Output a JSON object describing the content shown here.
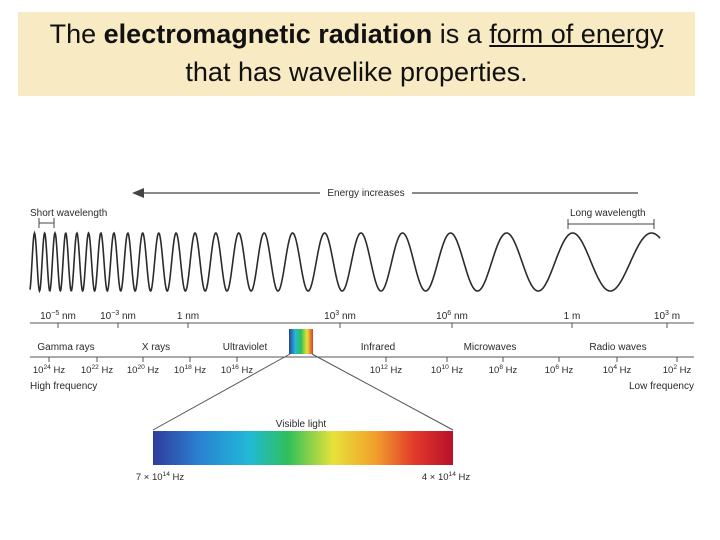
{
  "title": {
    "line1": {
      "part1": "The ",
      "bold": "electromagnetic radiation",
      "part2": " is a ",
      "underlined": "form of energy"
    },
    "line2": "that has wavelike properties."
  },
  "spectrum": {
    "energy_label": "Energy increases",
    "short_wavelength": "Short wavelength",
    "long_wavelength": "Long wavelength",
    "high_frequency": "High frequency",
    "low_frequency": "Low frequency",
    "wavelength_ticks": [
      {
        "base": "10",
        "exp": "−5",
        "unit": " nm"
      },
      {
        "base": "10",
        "exp": "−3",
        "unit": " nm"
      },
      {
        "base": "1 nm",
        "exp": "",
        "unit": ""
      },
      {
        "base": "10",
        "exp": "3",
        "unit": " nm"
      },
      {
        "base": "10",
        "exp": "6",
        "unit": " nm"
      },
      {
        "base": "1 m",
        "exp": "",
        "unit": ""
      },
      {
        "base": "10",
        "exp": "3",
        "unit": " m"
      }
    ],
    "regions": [
      "Gamma rays",
      "X rays",
      "Ultraviolet",
      "Infrared",
      "Microwaves",
      "Radio waves"
    ],
    "frequency_ticks": [
      {
        "base": "10",
        "exp": "24",
        "unit": " Hz"
      },
      {
        "base": "10",
        "exp": "22",
        "unit": " Hz"
      },
      {
        "base": "10",
        "exp": "20",
        "unit": " Hz"
      },
      {
        "base": "10",
        "exp": "18",
        "unit": " Hz"
      },
      {
        "base": "10",
        "exp": "16",
        "unit": " Hz"
      },
      {
        "base": "10",
        "exp": "12",
        "unit": " Hz"
      },
      {
        "base": "10",
        "exp": "10",
        "unit": " Hz"
      },
      {
        "base": "10",
        "exp": "8",
        "unit": " Hz"
      },
      {
        "base": "10",
        "exp": "6",
        "unit": " Hz"
      },
      {
        "base": "10",
        "exp": "4",
        "unit": " Hz"
      },
      {
        "base": "10",
        "exp": "2",
        "unit": " Hz"
      }
    ],
    "visible_light_label": "Visible light",
    "visible_left": {
      "base": "7 × 10",
      "exp": "14",
      "unit": " Hz"
    },
    "visible_right": {
      "base": "4 × 10",
      "exp": "14",
      "unit": " Hz"
    }
  },
  "colors": {
    "title_background": "#f8eac2",
    "line": "#444444",
    "wave": "#2b2b2b",
    "visible_gradient": [
      "#2f3d9c",
      "#2a7fd0",
      "#21b9d8",
      "#2fbf5a",
      "#e7e23a",
      "#f2a12c",
      "#e23a2a",
      "#b8102a"
    ]
  }
}
